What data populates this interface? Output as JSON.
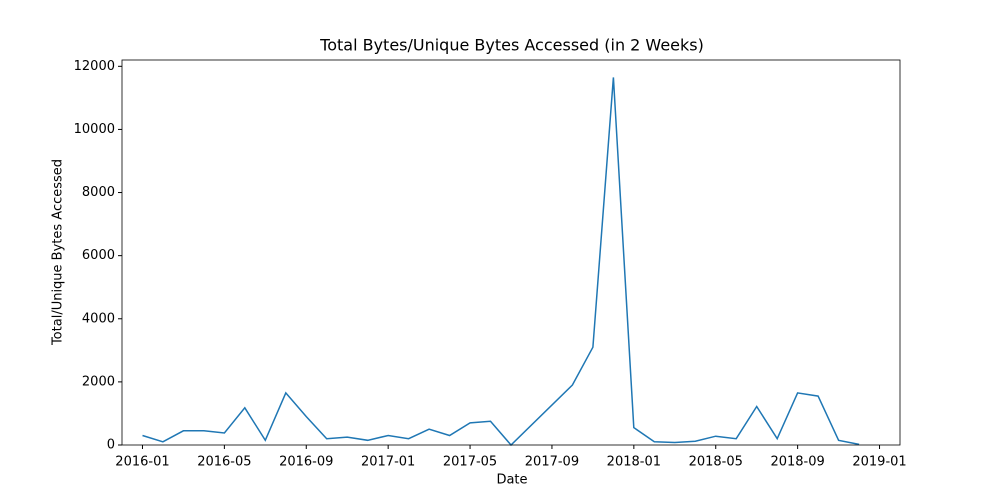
{
  "chart_data": {
    "type": "line",
    "title": "Total Bytes/Unique Bytes Accessed (in 2 Weeks)",
    "x_label": "Date",
    "y_label": "Total/Unique Bytes Accessed",
    "x": [
      "2016-01",
      "2016-02",
      "2016-03",
      "2016-04",
      "2016-05",
      "2016-06",
      "2016-07",
      "2016-08",
      "2016-09",
      "2016-10",
      "2016-11",
      "2016-12",
      "2017-01",
      "2017-02",
      "2017-03",
      "2017-04",
      "2017-05",
      "2017-06",
      "2017-07",
      "2017-10",
      "2017-11",
      "2017-12",
      "2018-01",
      "2018-02",
      "2018-03",
      "2018-04",
      "2018-05",
      "2018-06",
      "2018-07",
      "2018-08",
      "2018-09",
      "2018-10",
      "2018-11",
      "2018-12"
    ],
    "series": [
      {
        "name": "Total/Unique Bytes Accessed",
        "color": "#1f77b4",
        "values": [
          300,
          100,
          450,
          450,
          380,
          1180,
          150,
          1650,
          900,
          200,
          250,
          150,
          300,
          200,
          500,
          300,
          700,
          750,
          0,
          1900,
          3100,
          11650,
          550,
          100,
          80,
          120,
          280,
          200,
          1220,
          200,
          1650,
          1550,
          150,
          20
        ]
      }
    ],
    "xlim": [
      "2015-12",
      "2019-02"
    ],
    "xticks": [
      "2016-01",
      "2016-05",
      "2016-09",
      "2017-01",
      "2017-05",
      "2017-09",
      "2018-01",
      "2018-05",
      "2018-09",
      "2019-01"
    ],
    "ylim": [
      0,
      12200
    ],
    "yticks": [
      0,
      2000,
      4000,
      6000,
      8000,
      10000,
      12000
    ]
  }
}
